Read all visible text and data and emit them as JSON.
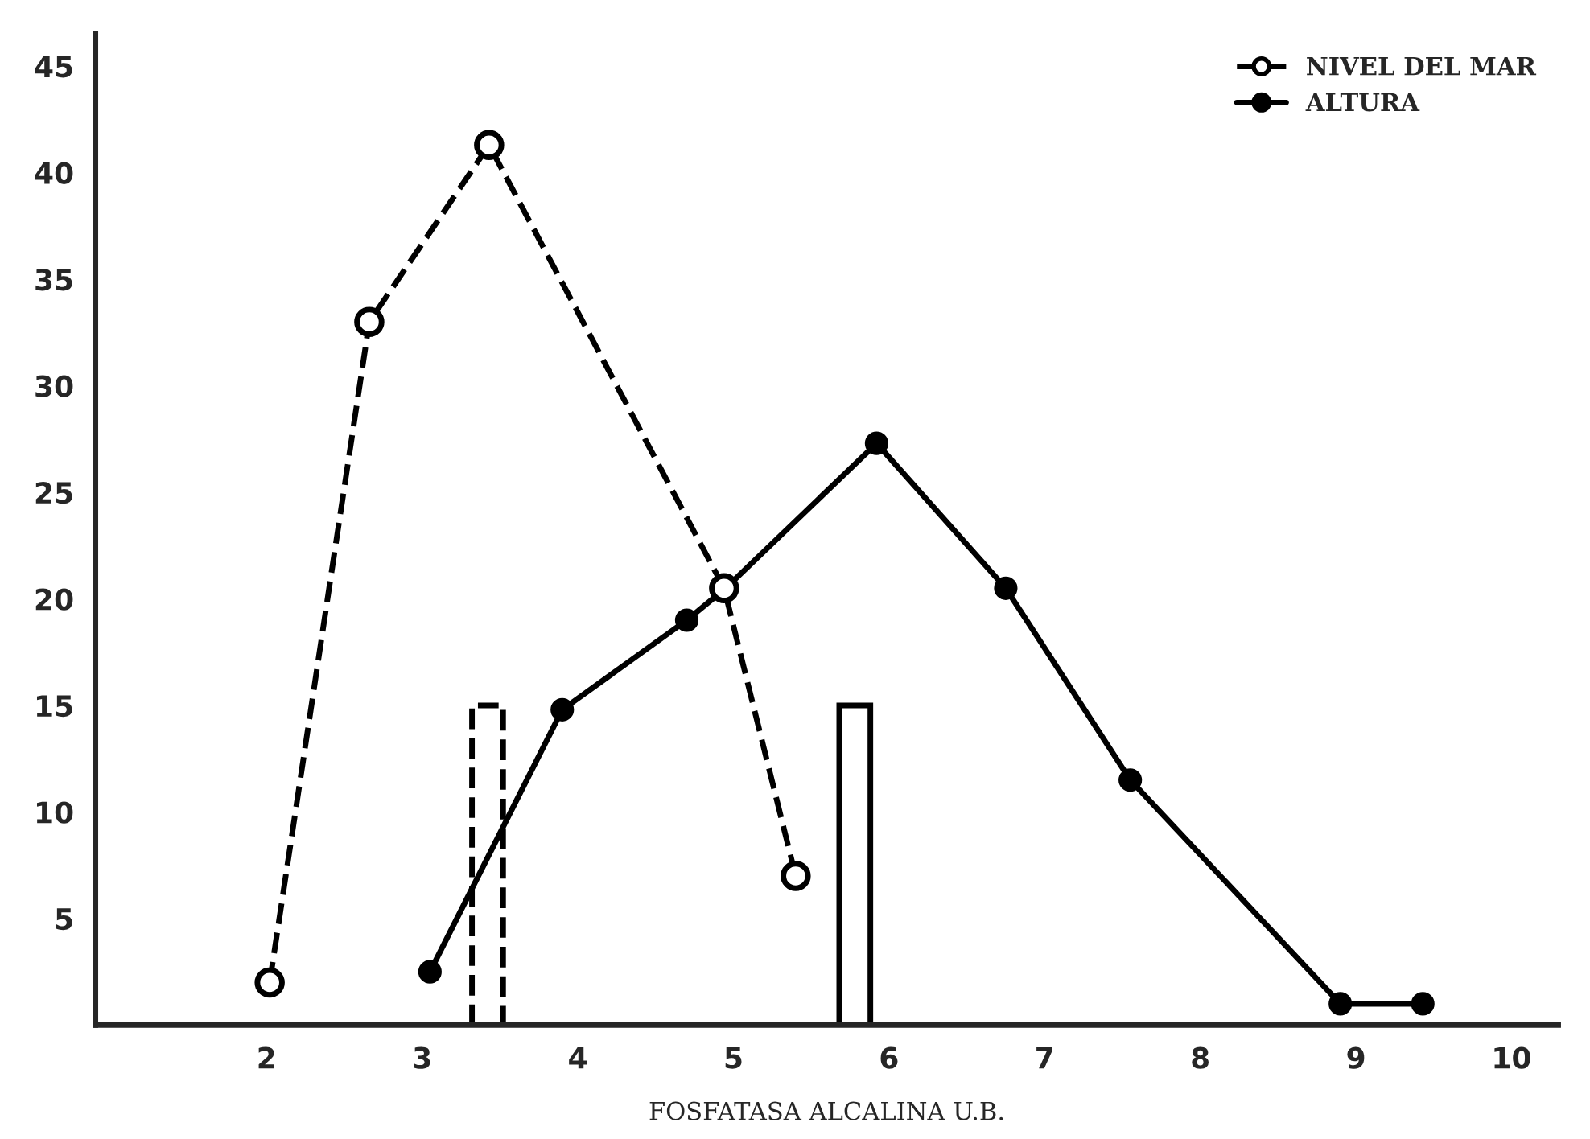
{
  "chart_data": {
    "type": "line",
    "xlabel": "FOSFATASA ALCALINA U.B.",
    "xlim": [
      0.9,
      10.3
    ],
    "ylim": [
      0,
      46.5
    ],
    "xticks": [
      2,
      3,
      4,
      5,
      6,
      7,
      8,
      9,
      10
    ],
    "yticks": [
      5,
      10,
      15,
      20,
      25,
      30,
      35,
      40,
      45
    ],
    "grid": false,
    "legend": "top right",
    "marker": "circle",
    "series": [
      {
        "name": "NIVEL DEL MAR",
        "color": "#000000",
        "line_style": "dashed",
        "x": [
          2.02,
          2.66,
          3.43,
          4.94,
          5.4
        ],
        "values": [
          2,
          33,
          41.3,
          20.5,
          7
        ]
      },
      {
        "name": "ALTURA",
        "color": "#000000",
        "line_style": "solid",
        "x": [
          3.05,
          3.9,
          4.7,
          4.95,
          5.92,
          6.75,
          7.55,
          8.9,
          9.43
        ],
        "values": [
          2.5,
          14.8,
          19,
          20.5,
          27.3,
          20.5,
          11.5,
          1,
          1
        ]
      },
      {
        "type": "bar",
        "color": "#000000",
        "line_style": "dashed",
        "x": [
          3.42
        ],
        "values": [
          15
        ]
      },
      {
        "type": "bar",
        "color": "#000000",
        "line_style": "solid",
        "x": [
          5.78
        ],
        "values": [
          15
        ]
      }
    ]
  }
}
